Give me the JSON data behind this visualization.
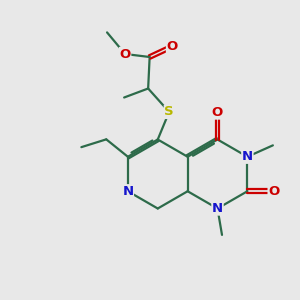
{
  "bg_color": "#e8e8e8",
  "bond_color": "#2d6b4a",
  "bond_lw": 1.6,
  "dbo": 0.06,
  "colors": {
    "O": "#cc0000",
    "N": "#1515cc",
    "S": "#b8b800",
    "C": "#2d6b4a"
  },
  "fs": 9.5
}
